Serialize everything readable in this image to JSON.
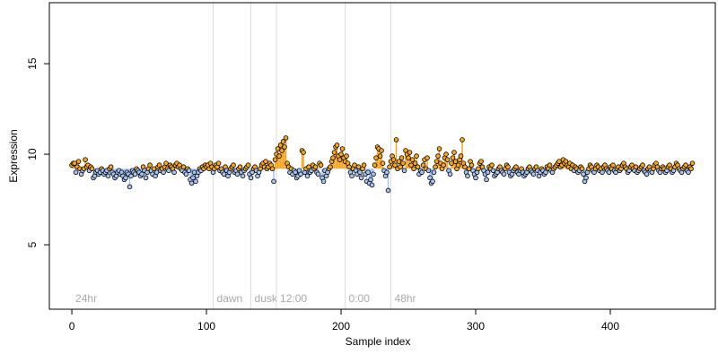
{
  "chart_data": {
    "type": "lollipop",
    "xlabel": "Sample index",
    "ylabel": "Expression",
    "xlim": [
      -16.7,
      478
    ],
    "ylim": [
      1.44,
      18.37
    ],
    "xticks": [
      0,
      100,
      200,
      300,
      400
    ],
    "yticks": [
      5,
      10,
      15
    ],
    "baseline": 9.2,
    "up_color": "#f5a623",
    "down_color": "#a4c2f4",
    "events": [
      {
        "x": 0,
        "label": "24hr",
        "line": false
      },
      {
        "x": 105,
        "label": "dawn",
        "line": true
      },
      {
        "x": 133,
        "label": "dusk",
        "line": true
      },
      {
        "x": 152,
        "label": "12:00",
        "line": true
      },
      {
        "x": 203,
        "label": "0:00",
        "line": true
      },
      {
        "x": 237,
        "label": "48hr",
        "line": true
      }
    ],
    "values": [
      9.4,
      9.5,
      9.5,
      9.0,
      9.3,
      9.6,
      9.2,
      8.9,
      9.1,
      9.2,
      9.7,
      9.3,
      9.4,
      9.1,
      9.3,
      9.2,
      8.7,
      8.8,
      9.0,
      9.1,
      8.9,
      9.0,
      9.2,
      9.1,
      8.9,
      9.0,
      9.1,
      8.8,
      9.2,
      9.3,
      9.0,
      8.9,
      8.7,
      8.8,
      9.0,
      9.1,
      8.9,
      9.0,
      8.8,
      8.6,
      8.7,
      9.0,
      8.9,
      8.2,
      8.8,
      9.1,
      9.0,
      8.9,
      9.2,
      9.1,
      9.0,
      8.8,
      8.9,
      9.3,
      9.1,
      8.7,
      9.0,
      9.2,
      9.4,
      9.1,
      8.9,
      9.2,
      8.8,
      9.0,
      9.3,
      9.4,
      9.1,
      9.2,
      9.0,
      9.3,
      9.5,
      9.2,
      9.1,
      9.4,
      9.3,
      9.2,
      9.0,
      9.4,
      9.5,
      9.3,
      9.4,
      9.2,
      9.1,
      9.3,
      9.0,
      8.9,
      9.2,
      9.1,
      8.6,
      8.4,
      8.7,
      9.0,
      8.5,
      8.8,
      9.0,
      9.2,
      9.1,
      9.3,
      9.2,
      9.4,
      9.3,
      9.4,
      9.2,
      9.5,
      9.3,
      9.0,
      9.2,
      9.4,
      9.3,
      9.5,
      9.1,
      9.2,
      9.0,
      8.9,
      9.3,
      9.1,
      8.8,
      9.0,
      9.2,
      9.3,
      9.4,
      9.0,
      9.1,
      8.9,
      9.2,
      9.3,
      9.0,
      8.8,
      9.1,
      9.2,
      9.3,
      9.4,
      8.9,
      8.7,
      9.0,
      9.2,
      9.3,
      9.1,
      8.8,
      9.0,
      9.2,
      9.4,
      9.5,
      9.3,
      9.6,
      9.2,
      9.3,
      9.5,
      9.4,
      9.2,
      8.5,
      9.7,
      10.0,
      10.3,
      9.9,
      10.5,
      10.2,
      10.7,
      10.4,
      10.9,
      9.5,
      9.3,
      9.0,
      9.2,
      8.9,
      9.1,
      9.0,
      8.7,
      8.8,
      9.1,
      8.9,
      10.2,
      10.1,
      9.0,
      9.2,
      8.8,
      9.3,
      9.0,
      9.1,
      9.4,
      9.2,
      9.3,
      9.0,
      8.9,
      9.5,
      9.4,
      8.7,
      8.5,
      9.1,
      8.8,
      9.0,
      9.2,
      9.3,
      9.6,
      9.8,
      10.1,
      10.4,
      10.5,
      9.9,
      9.7,
      10.0,
      10.3,
      9.8,
      9.6,
      9.9,
      9.5,
      9.3,
      9.0,
      8.8,
      9.2,
      9.4,
      9.1,
      8.9,
      9.3,
      9.0,
      8.7,
      9.2,
      9.4,
      8.9,
      8.5,
      9.0,
      8.4,
      8.6,
      8.3,
      8.9,
      9.4,
      9.8,
      10.4,
      10.3,
      9.9,
      10.2,
      9.5,
      9.1,
      8.8,
      9.0,
      8.0,
      9.3,
      9.6,
      9.9,
      9.7,
      9.4,
      10.8,
      9.2,
      9.6,
      9.3,
      9.8,
      9.5,
      9.1,
      10.2,
      10.0,
      9.8,
      10.1,
      9.4,
      9.7,
      9.2,
      9.5,
      9.9,
      9.3,
      8.9,
      9.1,
      9.0,
      9.4,
      9.7,
      9.2,
      9.8,
      9.1,
      8.7,
      8.4,
      8.5,
      9.0,
      9.3,
      9.6,
      9.9,
      10.3,
      9.5,
      9.2,
      9.4,
      9.8,
      10.0,
      9.7,
      9.1,
      8.9,
      9.5,
      9.8,
      10.1,
      9.6,
      9.2,
      9.4,
      9.7,
      9.9,
      10.8,
      9.5,
      9.3,
      9.0,
      8.8,
      9.2,
      9.6,
      9.4,
      9.1,
      8.9,
      8.7,
      9.0,
      9.2,
      9.5,
      9.6,
      9.3,
      9.1,
      8.9,
      8.6,
      9.0,
      9.3,
      9.2,
      9.4,
      9.1,
      8.8,
      8.9,
      9.0,
      9.2,
      9.3,
      9.1,
      9.0,
      8.9,
      9.2,
      9.4,
      9.3,
      9.0,
      8.8,
      8.9,
      9.1,
      9.2,
      9.3,
      9.0,
      8.9,
      9.1,
      9.2,
      9.0,
      8.8,
      8.9,
      9.0,
      9.2,
      9.3,
      9.1,
      9.0,
      8.9,
      9.2,
      9.3,
      9.1,
      8.8,
      9.0,
      9.2,
      9.1,
      8.9,
      9.0,
      9.3,
      9.2,
      9.4,
      9.1,
      9.0,
      9.2,
      9.3,
      9.4,
      9.5,
      9.6,
      9.3,
      9.4,
      9.7,
      9.5,
      9.6,
      9.4,
      9.3,
      9.5,
      9.2,
      9.4,
      9.1,
      9.3,
      9.2,
      9.0,
      9.1,
      9.3,
      9.2,
      8.9,
      8.5,
      8.7,
      9.0,
      9.2,
      9.4,
      9.3,
      9.1,
      9.0,
      9.2,
      9.4,
      9.3,
      9.1,
      9.2,
      9.0,
      9.3,
      9.4,
      9.2,
      9.1,
      9.0,
      9.3,
      9.2,
      9.4,
      9.1,
      9.0,
      9.2,
      9.3,
      9.1,
      9.2,
      9.4,
      9.5,
      9.3,
      9.2,
      9.0,
      9.1,
      9.3,
      9.4,
      9.2,
      9.1,
      9.3,
      9.0,
      9.1,
      9.2,
      9.3,
      9.4,
      9.1,
      9.0,
      8.9,
      9.2,
      9.3,
      9.1,
      9.0,
      9.2,
      9.4,
      9.5,
      9.3,
      9.1,
      9.0,
      9.2,
      9.3,
      9.2,
      9.0,
      9.1,
      9.3,
      9.4,
      9.2,
      9.0,
      9.1,
      9.3,
      9.5,
      9.4,
      9.2,
      9.1,
      9.0,
      9.2,
      9.3,
      9.4,
      9.1,
      9.0,
      9.3,
      9.2,
      9.5
    ]
  }
}
